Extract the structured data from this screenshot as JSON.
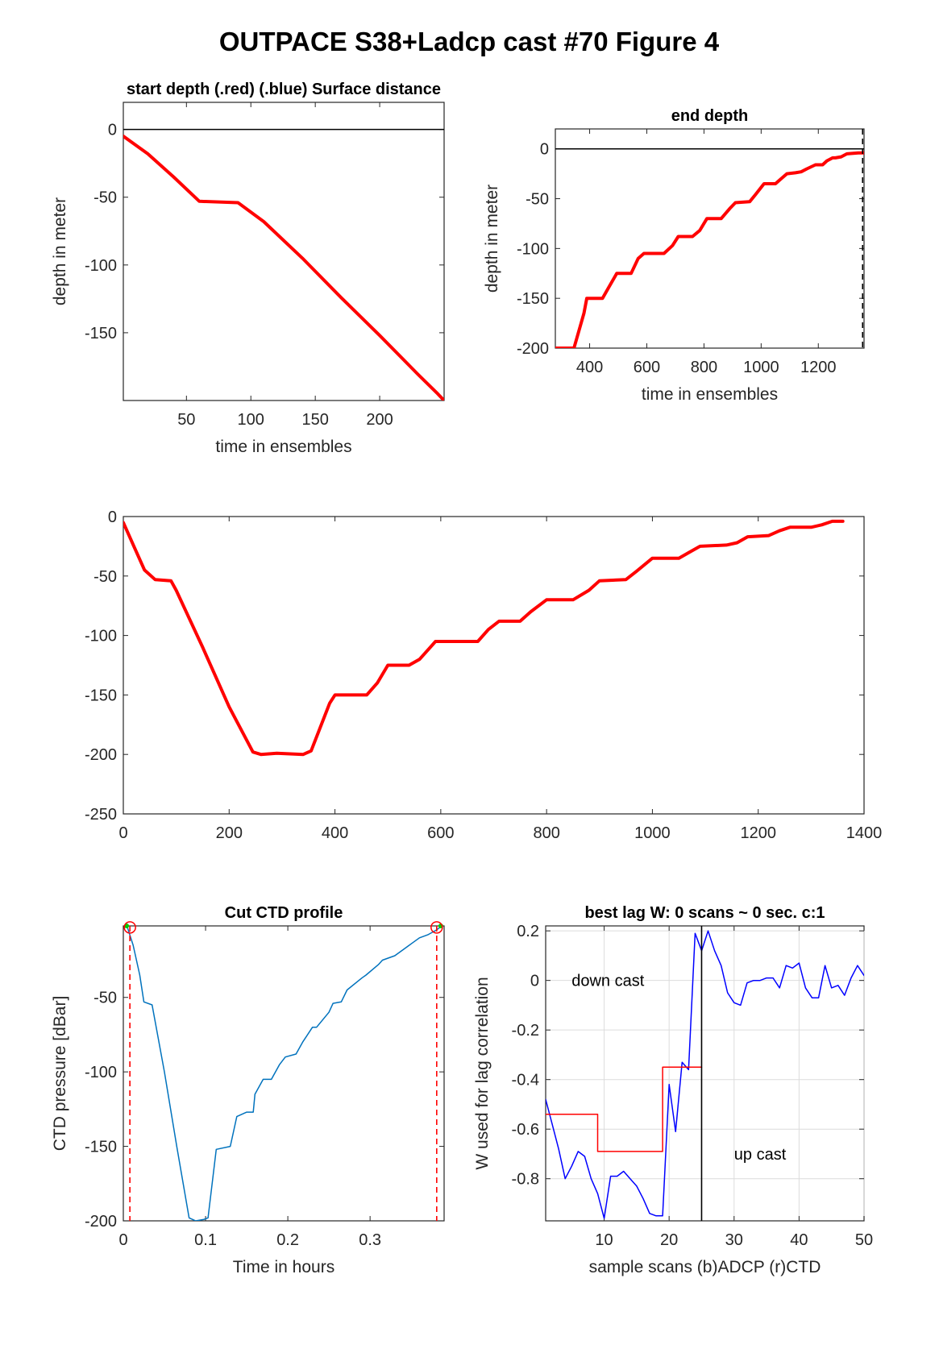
{
  "figure_title": "OUTPACE S38+Ladcp cast #70   Figure 4",
  "colors": {
    "red": "#ff0000",
    "blue": "#0000ff",
    "ctd_blue": "#0072bd",
    "green": "#00cc00",
    "black": "#000000"
  },
  "chart_data": [
    {
      "id": "start",
      "type": "line",
      "title": "start depth (.red) (.blue) Surface distance",
      "xlabel": "time in ensembles",
      "ylabel": "depth in meter",
      "xlim": [
        1,
        250
      ],
      "ylim": [
        -200,
        20
      ],
      "xticks": [
        50,
        100,
        150,
        200
      ],
      "yticks": [
        -150,
        -100,
        -50,
        0
      ],
      "grid": false,
      "hlines": [
        {
          "y": 0,
          "color": "#000000"
        }
      ],
      "series": [
        {
          "color": "#ff0000",
          "width": 4,
          "x": [
            1,
            20,
            40,
            60,
            90,
            110,
            140,
            170,
            200,
            230,
            245,
            250
          ],
          "y": [
            -5,
            -18,
            -35,
            -53,
            -54,
            -68,
            -95,
            -124,
            -152,
            -181,
            -195,
            -200
          ]
        }
      ]
    },
    {
      "id": "end",
      "type": "line",
      "title": "end depth",
      "xlabel": "time in ensembles",
      "ylabel": "depth in meter",
      "xlim": [
        280,
        1360
      ],
      "ylim": [
        -200,
        20
      ],
      "xticks": [
        400,
        600,
        800,
        1000,
        1200
      ],
      "yticks": [
        -200,
        -150,
        -100,
        -50,
        0
      ],
      "grid": false,
      "hlines": [
        {
          "y": 0,
          "color": "#000000"
        }
      ],
      "vlines": [
        {
          "x": 1355,
          "color": "#000000",
          "dashed": true
        }
      ],
      "series": [
        {
          "color": "#ff0000",
          "width": 4,
          "x": [
            280,
            345,
            380,
            390,
            445,
            465,
            495,
            545,
            570,
            590,
            660,
            690,
            710,
            760,
            785,
            810,
            860,
            890,
            910,
            960,
            980,
            1010,
            1050,
            1070,
            1090,
            1120,
            1140,
            1160,
            1190,
            1200,
            1215,
            1230,
            1250,
            1260,
            1280,
            1300,
            1340,
            1360
          ],
          "y": [
            -200,
            -200,
            -165,
            -150,
            -150,
            -140,
            -125,
            -125,
            -110,
            -105,
            -105,
            -97,
            -88,
            -88,
            -82,
            -70,
            -70,
            -60,
            -54,
            -53,
            -46,
            -35,
            -35,
            -30,
            -25,
            -24,
            -23,
            -20,
            -16,
            -16,
            -16,
            -12,
            -9,
            -9,
            -8,
            -5,
            -4,
            -4
          ]
        }
      ]
    },
    {
      "id": "full",
      "type": "line",
      "title": "",
      "xlabel": "",
      "ylabel": "",
      "xlim": [
        0,
        1400
      ],
      "ylim": [
        -250,
        0
      ],
      "xticks": [
        0,
        200,
        400,
        600,
        800,
        1000,
        1200,
        1400
      ],
      "yticks": [
        -250,
        -200,
        -150,
        -100,
        -50,
        0
      ],
      "grid": false,
      "series": [
        {
          "color": "#ff0000",
          "width": 4,
          "x": [
            0,
            20,
            40,
            60,
            90,
            100,
            150,
            200,
            245,
            260,
            290,
            340,
            355,
            390,
            400,
            460,
            480,
            500,
            540,
            560,
            580,
            590,
            670,
            690,
            710,
            750,
            770,
            800,
            850,
            880,
            900,
            950,
            970,
            1000,
            1050,
            1070,
            1090,
            1140,
            1160,
            1180,
            1220,
            1240,
            1260,
            1300,
            1320,
            1340,
            1360
          ],
          "y": [
            -5,
            -25,
            -45,
            -53,
            -54,
            -62,
            -110,
            -160,
            -198,
            -200,
            -199,
            -200,
            -197,
            -157,
            -150,
            -150,
            -140,
            -125,
            -125,
            -120,
            -110,
            -105,
            -105,
            -95,
            -88,
            -88,
            -80,
            -70,
            -70,
            -62,
            -54,
            -53,
            -46,
            -35,
            -35,
            -30,
            -25,
            -24,
            -22,
            -17,
            -16,
            -12,
            -9,
            -9,
            -7,
            -4,
            -4
          ]
        }
      ]
    },
    {
      "id": "ctd",
      "type": "line",
      "title": "Cut CTD profile",
      "xlabel": "Time in hours",
      "ylabel": "CTD pressure [dBar]",
      "xlim": [
        0,
        0.39
      ],
      "ylim": [
        -200,
        -2
      ],
      "xticks": [
        0,
        0.1,
        0.2,
        0.3
      ],
      "yticks": [
        -200,
        -150,
        -100,
        -50
      ],
      "grid": false,
      "vlines": [
        {
          "x": 0.008,
          "color": "#ff0000",
          "dashed": true
        },
        {
          "x": 0.381,
          "color": "#ff0000",
          "dashed": true
        }
      ],
      "markers": [
        {
          "x": 0.008,
          "y": -3,
          "color": "#ff0000"
        },
        {
          "x": 0.381,
          "y": -3,
          "color": "#ff0000"
        }
      ],
      "green_markers": [
        {
          "x": 0.004,
          "y": -2
        },
        {
          "x": 0.386,
          "y": -2
        }
      ],
      "series": [
        {
          "color": "#0072bd",
          "width": 1.5,
          "x": [
            0.005,
            0.012,
            0.02,
            0.025,
            0.035,
            0.05,
            0.065,
            0.08,
            0.088,
            0.098,
            0.103,
            0.113,
            0.13,
            0.138,
            0.15,
            0.158,
            0.16,
            0.17,
            0.18,
            0.19,
            0.197,
            0.21,
            0.218,
            0.23,
            0.235,
            0.25,
            0.255,
            0.265,
            0.272,
            0.29,
            0.295,
            0.31,
            0.315,
            0.33,
            0.34,
            0.35,
            0.36,
            0.37,
            0.38,
            0.385
          ],
          "y": [
            -3,
            -15,
            -35,
            -53,
            -55,
            -100,
            -150,
            -198,
            -200,
            -199,
            -198,
            -152,
            -150,
            -130,
            -127,
            -127,
            -115,
            -105,
            -105,
            -95,
            -90,
            -88,
            -80,
            -70,
            -70,
            -60,
            -54,
            -53,
            -45,
            -37,
            -35,
            -28,
            -25,
            -22,
            -18,
            -14,
            -10,
            -8,
            -5,
            -3
          ]
        }
      ]
    },
    {
      "id": "lag",
      "type": "line",
      "title": "best lag W: 0 scans ~ 0 sec.  c:1",
      "xlabel": "sample scans (b)ADCP (r)CTD",
      "ylabel": "W used for lag correlation",
      "xlim": [
        1,
        50
      ],
      "ylim": [
        -0.97,
        0.22
      ],
      "xticks": [
        10,
        20,
        30,
        40,
        50
      ],
      "yticks": [
        -0.8,
        -0.6,
        -0.4,
        -0.2,
        0,
        0.2
      ],
      "grid": true,
      "vlines": [
        {
          "x": 25,
          "color": "#000000",
          "dashed": false
        }
      ],
      "annotations": [
        {
          "text": "down cast",
          "x": 5,
          "y": 0.0
        },
        {
          "text": "up cast",
          "x": 30,
          "y": -0.7
        }
      ],
      "series": [
        {
          "color": "#0000ff",
          "width": 1.5,
          "x": [
            1,
            2,
            3,
            4,
            5,
            6,
            7,
            8,
            9,
            10,
            11,
            12,
            13,
            14,
            15,
            16,
            17,
            18,
            19,
            20,
            21,
            22,
            23,
            24,
            25,
            26,
            27,
            28,
            29,
            30,
            31,
            32,
            33,
            34,
            35,
            36,
            37,
            38,
            39,
            40,
            41,
            42,
            43,
            44,
            45,
            46,
            47,
            48,
            49,
            50
          ],
          "y": [
            -0.48,
            -0.58,
            -0.68,
            -0.8,
            -0.75,
            -0.69,
            -0.71,
            -0.8,
            -0.86,
            -0.96,
            -0.79,
            -0.79,
            -0.77,
            -0.8,
            -0.83,
            -0.88,
            -0.94,
            -0.95,
            -0.95,
            -0.42,
            -0.61,
            -0.33,
            -0.36,
            0.19,
            0.12,
            0.2,
            0.12,
            0.06,
            -0.05,
            -0.09,
            -0.1,
            -0.01,
            -0.0,
            0.0,
            0.01,
            0.01,
            -0.03,
            0.06,
            0.05,
            0.07,
            -0.03,
            -0.07,
            -0.07,
            0.06,
            -0.03,
            -0.02,
            -0.06,
            0.01,
            0.06,
            0.02
          ]
        },
        {
          "color": "#ff0000",
          "width": 1.5,
          "x": [
            1,
            9,
            9,
            19,
            19,
            24,
            24,
            25
          ],
          "y": [
            -0.54,
            -0.54,
            -0.69,
            -0.69,
            -0.35,
            -0.35,
            -0.35,
            -0.35
          ]
        }
      ]
    }
  ]
}
